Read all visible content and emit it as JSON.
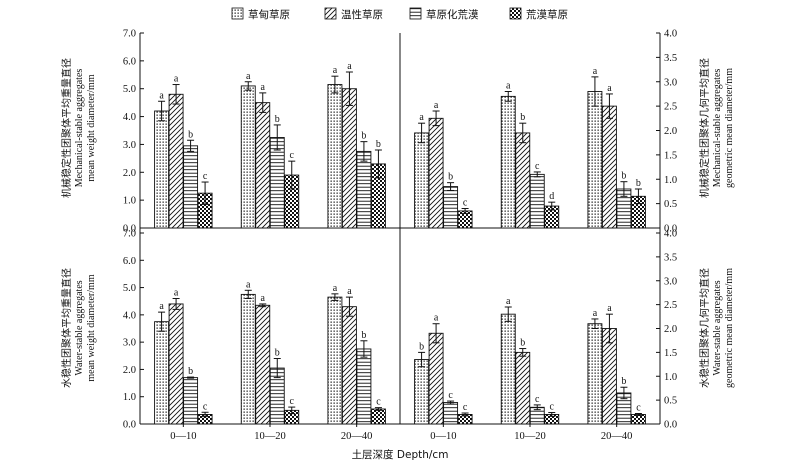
{
  "legend": [
    {
      "label": "草甸草原",
      "pattern": "dots"
    },
    {
      "label": "温性草原",
      "pattern": "diag"
    },
    {
      "label": "草原化荒漠",
      "pattern": "horiz"
    },
    {
      "label": "荒漠草原",
      "pattern": "check"
    }
  ],
  "xlabel": "土层深度 Depth/cm",
  "y_labels": {
    "left_top": [
      "机械稳定性团聚体平均重量直径",
      "Mechanical-stable aggregates",
      "mean weight diameter/mm"
    ],
    "right_top": [
      "机械稳定性团聚体几何平均直径",
      "Mechanical-stable aggregates",
      "geometric mean diameter/mm"
    ],
    "left_bottom": [
      "水稳性团聚体平均重量直径",
      "Water-stable aggregates",
      "mean weight diameter/mm"
    ],
    "right_bottom": [
      "水稳性团聚体几何平均直径",
      "Water-stable aggregates",
      "geometric mean diameter/mm"
    ]
  },
  "chart_data": [
    {
      "type": "bar",
      "panel": "top-left",
      "categories": [
        "0—10",
        "10—20",
        "20—40"
      ],
      "ylim": [
        0,
        7
      ],
      "yticks": [
        "0.0",
        "1.0",
        "2.0",
        "3.0",
        "4.0",
        "5.0",
        "6.0",
        "7.0"
      ],
      "series": [
        {
          "name": "草甸草原",
          "values": [
            4.2,
            5.1,
            5.15
          ],
          "errors": [
            0.35,
            0.15,
            0.3
          ],
          "letters": [
            "a",
            "a",
            "a"
          ]
        },
        {
          "name": "温性草原",
          "values": [
            4.8,
            4.5,
            5.0
          ],
          "errors": [
            0.35,
            0.35,
            0.6
          ],
          "letters": [
            "a",
            "a",
            "a"
          ]
        },
        {
          "name": "草原化荒漠",
          "values": [
            2.95,
            3.25,
            2.75
          ],
          "errors": [
            0.2,
            0.45,
            0.35
          ],
          "letters": [
            "b",
            "b",
            "b"
          ]
        },
        {
          "name": "荒漠草原",
          "values": [
            1.25,
            1.9,
            2.3
          ],
          "errors": [
            0.4,
            0.5,
            0.5
          ],
          "letters": [
            "c",
            "c",
            "b"
          ]
        }
      ]
    },
    {
      "type": "bar",
      "panel": "top-right",
      "categories": [
        "0—10",
        "10—20",
        "20—40"
      ],
      "ylim": [
        0,
        4
      ],
      "yticks": [
        "0.0",
        "0.5",
        "1.0",
        "1.5",
        "2.0",
        "2.5",
        "3.0",
        "3.5",
        "4.0"
      ],
      "series": [
        {
          "name": "草甸草原",
          "values": [
            1.95,
            2.7,
            2.8
          ],
          "errors": [
            0.2,
            0.1,
            0.3
          ],
          "letters": [
            "a",
            "a",
            "a"
          ]
        },
        {
          "name": "温性草原",
          "values": [
            2.25,
            1.95,
            2.5
          ],
          "errors": [
            0.15,
            0.2,
            0.25
          ],
          "letters": [
            "a",
            "b",
            "a"
          ]
        },
        {
          "name": "草原化荒漠",
          "values": [
            0.85,
            1.1,
            0.8
          ],
          "errors": [
            0.08,
            0.05,
            0.15
          ],
          "letters": [
            "b",
            "c",
            "b"
          ]
        },
        {
          "name": "荒漠草原",
          "values": [
            0.35,
            0.45,
            0.65
          ],
          "errors": [
            0.05,
            0.08,
            0.15
          ],
          "letters": [
            "c",
            "d",
            "b"
          ]
        }
      ]
    },
    {
      "type": "bar",
      "panel": "bottom-left",
      "categories": [
        "0—10",
        "10—20",
        "20—40"
      ],
      "ylim": [
        0,
        7
      ],
      "yticks": [
        "0.0",
        "1.0",
        "2.0",
        "3.0",
        "4.0",
        "5.0",
        "6.0",
        "7.0"
      ],
      "series": [
        {
          "name": "草甸草原",
          "values": [
            3.75,
            4.75,
            4.65
          ],
          "errors": [
            0.35,
            0.15,
            0.12
          ],
          "letters": [
            "a",
            "a",
            "a"
          ]
        },
        {
          "name": "温性草原",
          "values": [
            4.4,
            4.35,
            4.3
          ],
          "errors": [
            0.2,
            0.05,
            0.35
          ],
          "letters": [
            "a",
            "a",
            "a"
          ]
        },
        {
          "name": "草原化荒漠",
          "values": [
            1.7,
            2.05,
            2.75
          ],
          "errors": [
            0.02,
            0.35,
            0.3
          ],
          "letters": [
            "b",
            "b",
            "b"
          ]
        },
        {
          "name": "荒漠草原",
          "values": [
            0.35,
            0.5,
            0.55
          ],
          "errors": [
            0.08,
            0.12,
            0.05
          ],
          "letters": [
            "c",
            "c",
            "c"
          ]
        }
      ]
    },
    {
      "type": "bar",
      "panel": "bottom-right",
      "categories": [
        "0—10",
        "10—20",
        "20—40"
      ],
      "ylim": [
        0,
        4
      ],
      "yticks": [
        "0.0",
        "0.5",
        "1.0",
        "1.5",
        "2.0",
        "2.5",
        "3.0",
        "3.5",
        "4.0"
      ],
      "series": [
        {
          "name": "草甸草原",
          "values": [
            1.35,
            2.3,
            2.1
          ],
          "errors": [
            0.15,
            0.15,
            0.1
          ],
          "letters": [
            "b",
            "a",
            "a"
          ]
        },
        {
          "name": "温性草原",
          "values": [
            1.9,
            1.5,
            2.0
          ],
          "errors": [
            0.2,
            0.08,
            0.3
          ],
          "letters": [
            "a",
            "b",
            "a"
          ]
        },
        {
          "name": "草原化荒漠",
          "values": [
            0.45,
            0.35,
            0.65
          ],
          "errors": [
            0.03,
            0.05,
            0.12
          ],
          "letters": [
            "c",
            "c",
            "b"
          ]
        },
        {
          "name": "荒漠草原",
          "values": [
            0.2,
            0.2,
            0.2
          ],
          "errors": [
            0.03,
            0.04,
            0.02
          ],
          "letters": [
            "c",
            "c",
            "c"
          ]
        }
      ]
    }
  ]
}
